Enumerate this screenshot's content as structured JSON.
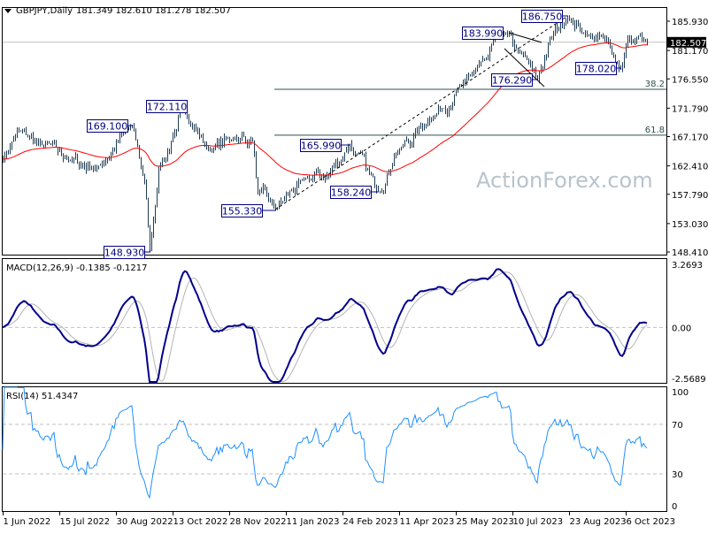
{
  "header": {
    "symbol": "GBPJPY,Daily",
    "ohlc": "181.349 182.610 181.278 182.507"
  },
  "watermark": "ActionForex.com",
  "colors": {
    "bars": "#1f3c52",
    "ma": "#ff0000",
    "macd": "#00008b",
    "signal": "#b4b4b4",
    "rsi": "#1e90ff",
    "label_border": "#000080"
  },
  "chart_data": [
    {
      "type": "ohlc",
      "panel": "price",
      "title": "GBPJPY,Daily",
      "current_price": "182.507",
      "y_ticks": [
        "185.930",
        "181.170",
        "176.550",
        "171.790",
        "167.170",
        "162.410",
        "157.790",
        "153.030",
        "148.410"
      ],
      "ylim": [
        147.98,
        188.23
      ],
      "x_ticks": [
        "1 Jun 2022",
        "15 Jul 2022",
        "30 Aug 2022",
        "13 Oct 2022",
        "28 Nov 2022",
        "11 Jan 2023",
        "24 Feb 2023",
        "11 Apr 2023",
        "25 May 2023",
        "10 Jul 2023",
        "23 Aug 2023",
        "6 Oct 2023"
      ],
      "path": [
        [
          "2022-06-01",
          163.5
        ],
        [
          "2022-06-13",
          168.0
        ],
        [
          "2022-06-30",
          166.0
        ],
        [
          "2022-07-21",
          163.5
        ],
        [
          "2022-08-15",
          162.0
        ],
        [
          "2022-09-12",
          169.1
        ],
        [
          "2022-09-21",
          160.0
        ],
        [
          "2022-09-26",
          148.93
        ],
        [
          "2022-10-03",
          162.0
        ],
        [
          "2022-10-17",
          168.0
        ],
        [
          "2022-10-21",
          172.11
        ],
        [
          "2022-11-10",
          165.0
        ],
        [
          "2022-12-01",
          167.0
        ],
        [
          "2022-12-15",
          166.5
        ],
        [
          "2022-12-20",
          158.0
        ],
        [
          "2023-01-03",
          155.33
        ],
        [
          "2023-01-24",
          160.0
        ],
        [
          "2023-02-14",
          161.0
        ],
        [
          "2023-03-02",
          165.99
        ],
        [
          "2023-03-24",
          158.24
        ],
        [
          "2023-04-06",
          164.0
        ],
        [
          "2023-05-04",
          170.0
        ],
        [
          "2023-06-01",
          176.0
        ],
        [
          "2023-06-20",
          180.0
        ],
        [
          "2023-06-29",
          183.99
        ],
        [
          "2023-07-13",
          181.0
        ],
        [
          "2023-07-28",
          176.29
        ],
        [
          "2023-08-08",
          183.0
        ],
        [
          "2023-08-22",
          186.75
        ],
        [
          "2023-09-05",
          184.0
        ],
        [
          "2023-09-25",
          182.0
        ],
        [
          "2023-10-03",
          178.02
        ],
        [
          "2023-10-09",
          183.0
        ],
        [
          "2023-10-24",
          182.507
        ]
      ],
      "annotations": [
        {
          "text": "169.100",
          "date": "2022-09-12",
          "price": 169.1,
          "kind": "high"
        },
        {
          "text": "172.110",
          "date": "2022-10-21",
          "price": 172.11,
          "kind": "high"
        },
        {
          "text": "148.930",
          "date": "2022-09-26",
          "price": 148.93,
          "kind": "low"
        },
        {
          "text": "155.330",
          "date": "2023-01-03",
          "price": 155.33,
          "kind": "low"
        },
        {
          "text": "165.990",
          "date": "2023-03-02",
          "price": 165.99,
          "kind": "high"
        },
        {
          "text": "158.240",
          "date": "2023-03-24",
          "price": 158.24,
          "kind": "low"
        },
        {
          "text": "183.990",
          "date": "2023-06-29",
          "price": 183.99,
          "kind": "high"
        },
        {
          "text": "176.290",
          "date": "2023-07-28",
          "price": 176.29,
          "kind": "low"
        },
        {
          "text": "186.750",
          "date": "2023-08-22",
          "price": 186.75,
          "kind": "high"
        },
        {
          "text": "178.020",
          "date": "2023-10-03",
          "price": 178.02,
          "kind": "low"
        }
      ],
      "fibonacci": [
        {
          "level": "38.2",
          "price": 174.86
        },
        {
          "level": "61.8",
          "price": 167.4
        }
      ],
      "moving_average": {
        "period": 55
      }
    },
    {
      "type": "line",
      "panel": "macd",
      "title": "MACD(12,26,9) -0.1385 -0.1217",
      "y_ticks": [
        "3.2693",
        "0.00",
        "-2.5689"
      ],
      "ylim": [
        -2.5689,
        3.2693
      ]
    },
    {
      "type": "line",
      "panel": "rsi",
      "title": "RSI(14) 51.4347",
      "y_ticks": [
        "100",
        "70",
        "30",
        "0"
      ],
      "levels": [
        70,
        30
      ],
      "ylim": [
        0,
        100
      ]
    }
  ]
}
